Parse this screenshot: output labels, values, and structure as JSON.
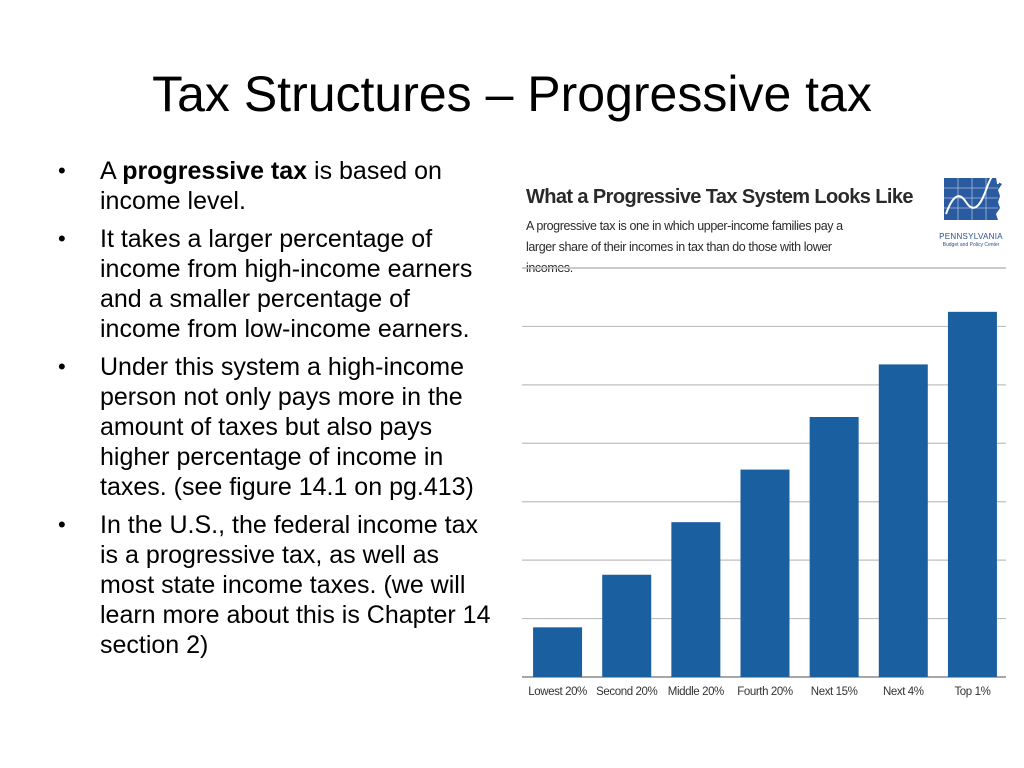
{
  "slide": {
    "title": "Tax Structures – Progressive tax",
    "bullets": [
      {
        "pre": "A ",
        "bold": "progressive tax",
        "post": " is based on income level."
      },
      {
        "pre": "It takes a larger percentage of income from high-income earners and a smaller percentage of income from low-income earners.",
        "bold": "",
        "post": ""
      },
      {
        "pre": "Under this system a high-income person not only pays more in the amount of taxes but also pays higher percentage of income in taxes. (see figure 14.1 on pg.413)",
        "bold": "",
        "post": ""
      },
      {
        "pre": "In the U.S., the federal income tax is a progressive tax, as well as most state income taxes. (we will learn more about this is Chapter 14 section 2)",
        "bold": "",
        "post": ""
      }
    ],
    "bullet_glyph": "•"
  },
  "figure": {
    "logo": {
      "name": "PENNSYLVANIA",
      "sub": "Budget and Policy Center",
      "icon": "pennsylvania-map-icon"
    }
  },
  "chart_data": {
    "type": "bar",
    "title": "What a Progressive Tax System Looks Like",
    "subtitle": "A progressive tax is one in which upper-income families pay a larger share of their incomes in tax than do those with lower incomes.",
    "categories": [
      "Lowest 20%",
      "Second 20%",
      "Middle 20%",
      "Fourth 20%",
      "Next 15%",
      "Next 4%",
      "Top 1%"
    ],
    "values": [
      0.85,
      1.75,
      2.65,
      3.55,
      4.45,
      5.35,
      6.25
    ],
    "ylim": [
      0,
      7
    ],
    "grid": true,
    "bar_color": "#1a5fa0",
    "grid_color": "#bfbfbf",
    "xlabel": "",
    "ylabel": ""
  }
}
